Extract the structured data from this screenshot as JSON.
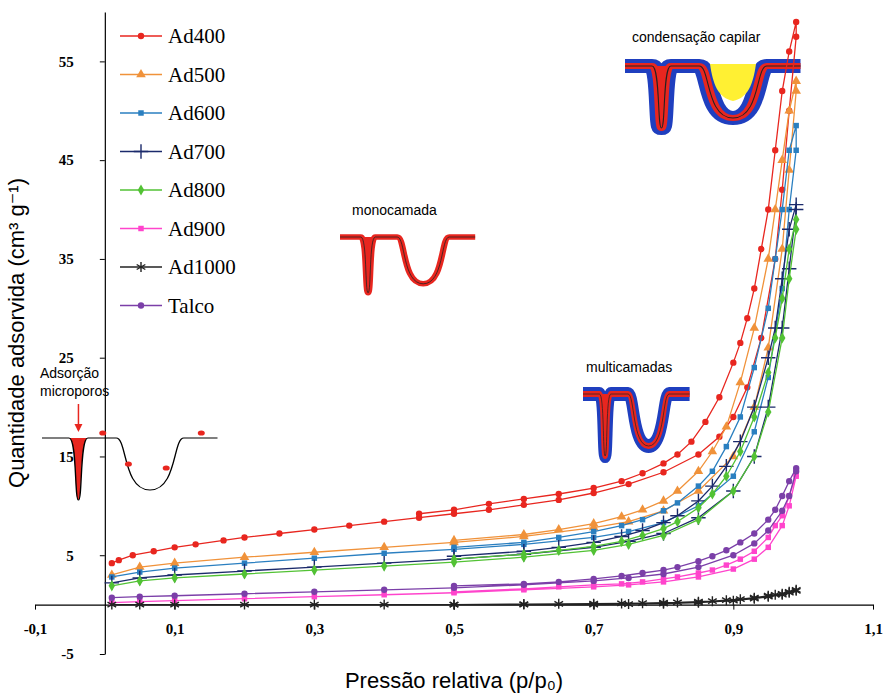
{
  "chart_data": {
    "type": "line",
    "xlabel": "Pressão relativa (p/p₀)",
    "ylabel": "Quantidade adsorvida (cm³ g⁻¹)",
    "annotations": [
      "Adsorção microporos",
      "monocamada",
      "multicamadas",
      "condensação capilar"
    ],
    "xlim": [
      -0.1,
      1.1
    ],
    "ylim": [
      -5,
      60
    ],
    "xticks": [
      {
        "value": -0.1,
        "label": "-0,1"
      },
      {
        "value": 0.1,
        "label": "0,1"
      },
      {
        "value": 0.3,
        "label": "0,3"
      },
      {
        "value": 0.5,
        "label": "0,5"
      },
      {
        "value": 0.7,
        "label": "0,7"
      },
      {
        "value": 0.9,
        "label": "0,9"
      },
      {
        "value": 1.1,
        "label": "1,1"
      }
    ],
    "yticks": [
      -5,
      5,
      15,
      25,
      35,
      45,
      55
    ],
    "grid": false,
    "legend": "upper left",
    "series": [
      {
        "name": "Ad400",
        "color": "#e8261f",
        "marker": "circle",
        "x": [
          0.01,
          0.02,
          0.04,
          0.07,
          0.1,
          0.13,
          0.17,
          0.2,
          0.25,
          0.3,
          0.35,
          0.4,
          0.45,
          0.5,
          0.55,
          0.6,
          0.65,
          0.7,
          0.75,
          0.8,
          0.85,
          0.88,
          0.9,
          0.92,
          0.94,
          0.96,
          0.97,
          0.98,
          0.99,
          0.99,
          0.98,
          0.97,
          0.96,
          0.95,
          0.94,
          0.93,
          0.92,
          0.91,
          0.9,
          0.88,
          0.86,
          0.84,
          0.82,
          0.8,
          0.77,
          0.74,
          0.7,
          0.65,
          0.6,
          0.55,
          0.5,
          0.45
        ],
        "values": [
          4.2,
          4.5,
          5,
          5.4,
          5.8,
          6.1,
          6.5,
          6.8,
          7.2,
          7.6,
          8,
          8.4,
          8.8,
          9.2,
          9.6,
          10.1,
          10.6,
          11.3,
          12.2,
          13.4,
          15.2,
          17,
          19,
          22,
          27,
          35,
          42,
          50,
          57.5,
          59,
          56,
          52,
          46,
          40,
          36,
          32,
          29,
          26.5,
          24.5,
          21,
          18.5,
          16.5,
          15.2,
          14.3,
          13.3,
          12.5,
          11.8,
          11.2,
          10.7,
          10.2,
          9.6,
          9.2
        ]
      },
      {
        "name": "Ad500",
        "color": "#f0923a",
        "marker": "triangle",
        "x": [
          0.01,
          0.05,
          0.1,
          0.2,
          0.3,
          0.4,
          0.5,
          0.6,
          0.7,
          0.75,
          0.8,
          0.85,
          0.9,
          0.93,
          0.95,
          0.97,
          0.98,
          0.99,
          0.99,
          0.98,
          0.97,
          0.96,
          0.95,
          0.93,
          0.91,
          0.89,
          0.87,
          0.85,
          0.82,
          0.8,
          0.77,
          0.74,
          0.7,
          0.65,
          0.6,
          0.5
        ],
        "values": [
          3,
          3.8,
          4.2,
          4.8,
          5.3,
          5.8,
          6.3,
          6.9,
          7.8,
          8.4,
          9.5,
          11.5,
          15,
          20,
          26,
          36,
          44,
          52,
          53,
          50,
          45,
          40,
          35,
          28,
          22.5,
          18,
          15.5,
          13.5,
          11.5,
          10.5,
          9.6,
          8.9,
          8.2,
          7.6,
          7.1,
          6.5
        ]
      },
      {
        "name": "Ad600",
        "color": "#2a7fc0",
        "marker": "square",
        "x": [
          0.01,
          0.05,
          0.1,
          0.2,
          0.3,
          0.4,
          0.5,
          0.6,
          0.7,
          0.75,
          0.8,
          0.85,
          0.9,
          0.93,
          0.95,
          0.97,
          0.98,
          0.99,
          0.99,
          0.98,
          0.97,
          0.96,
          0.95,
          0.93,
          0.91,
          0.89,
          0.87,
          0.85,
          0.82,
          0.8,
          0.77,
          0.74,
          0.7,
          0.65,
          0.6,
          0.5
        ],
        "values": [
          2.8,
          3.3,
          3.7,
          4.2,
          4.7,
          5.2,
          5.6,
          6.1,
          6.8,
          7.4,
          8.3,
          10,
          13,
          17.5,
          23,
          32,
          40,
          46,
          48.5,
          46,
          40,
          35,
          30,
          24,
          19,
          16,
          13.5,
          12,
          10.3,
          9.5,
          8.6,
          8,
          7.4,
          6.8,
          6.3,
          5.8
        ]
      },
      {
        "name": "Ad700",
        "color": "#1b2a6b",
        "marker": "plus",
        "x": [
          0.01,
          0.05,
          0.1,
          0.2,
          0.3,
          0.4,
          0.5,
          0.6,
          0.7,
          0.75,
          0.8,
          0.85,
          0.9,
          0.93,
          0.95,
          0.97,
          0.98,
          0.99,
          0.99,
          0.98,
          0.97,
          0.96,
          0.95,
          0.93,
          0.91,
          0.89,
          0.87,
          0.85,
          0.82,
          0.8,
          0.77,
          0.74,
          0.7,
          0.65,
          0.6,
          0.5
        ],
        "values": [
          2.2,
          2.7,
          3,
          3.4,
          3.8,
          4.2,
          4.6,
          5.1,
          5.8,
          6.4,
          7.2,
          8.8,
          11.5,
          15,
          20,
          28,
          34,
          40,
          40.5,
          38,
          33,
          28,
          25,
          20,
          16.5,
          14,
          12,
          10.5,
          9,
          8.3,
          7.5,
          6.9,
          6.3,
          5.8,
          5.4,
          4.9
        ]
      },
      {
        "name": "Ad800",
        "color": "#52c234",
        "marker": "diamond",
        "x": [
          0.01,
          0.05,
          0.1,
          0.2,
          0.3,
          0.4,
          0.5,
          0.6,
          0.7,
          0.75,
          0.8,
          0.85,
          0.9,
          0.93,
          0.95,
          0.97,
          0.98,
          0.99,
          0.99,
          0.98,
          0.97,
          0.96,
          0.95,
          0.93,
          0.91,
          0.89,
          0.87,
          0.85,
          0.82,
          0.8,
          0.77,
          0.74,
          0.7,
          0.65,
          0.6,
          0.5
        ],
        "values": [
          1.9,
          2.4,
          2.7,
          3.1,
          3.5,
          3.9,
          4.3,
          4.8,
          5.5,
          6.1,
          7,
          8.6,
          11.5,
          15,
          19.5,
          27,
          33,
          38,
          39,
          36,
          31,
          27,
          23.5,
          19,
          15.5,
          13,
          11.2,
          9.8,
          8.4,
          7.7,
          7,
          6.4,
          5.9,
          5.5,
          5.1,
          4.6
        ]
      },
      {
        "name": "Ad900",
        "color": "#ff44cc",
        "marker": "square",
        "x": [
          0.01,
          0.05,
          0.1,
          0.2,
          0.3,
          0.4,
          0.5,
          0.6,
          0.7,
          0.75,
          0.8,
          0.85,
          0.9,
          0.93,
          0.95,
          0.97,
          0.98,
          0.99,
          0.99,
          0.98,
          0.97,
          0.96,
          0.95,
          0.93,
          0.91,
          0.89,
          0.87,
          0.85,
          0.82,
          0.8,
          0.77,
          0.74,
          0.7,
          0.65,
          0.6,
          0.5
        ],
        "values": [
          0.2,
          0.3,
          0.4,
          0.6,
          0.8,
          1,
          1.2,
          1.5,
          1.8,
          2,
          2.3,
          2.8,
          3.6,
          4.6,
          5.8,
          8,
          10,
          13,
          13.2,
          11,
          9,
          8,
          6.8,
          5.4,
          4.6,
          4,
          3.5,
          3.2,
          2.8,
          2.6,
          2.3,
          2.1,
          2,
          1.8,
          1.6,
          1.3
        ]
      },
      {
        "name": "Ad1000",
        "color": "#222222",
        "marker": "asterisk",
        "x": [
          0.01,
          0.05,
          0.1,
          0.2,
          0.3,
          0.4,
          0.5,
          0.6,
          0.7,
          0.75,
          0.8,
          0.85,
          0.9,
          0.93,
          0.95,
          0.97,
          0.98,
          0.99,
          0.99,
          0.98,
          0.97,
          0.96,
          0.95,
          0.93,
          0.91,
          0.89,
          0.87,
          0.85,
          0.82,
          0.8,
          0.77,
          0.74,
          0.7,
          0.65,
          0.6,
          0.5
        ],
        "values": [
          0,
          0,
          0,
          0,
          0,
          0,
          0,
          0,
          0,
          0.05,
          0.1,
          0.2,
          0.4,
          0.6,
          0.8,
          1,
          1.2,
          1.4,
          1.5,
          1.3,
          1.1,
          1,
          0.9,
          0.7,
          0.55,
          0.45,
          0.35,
          0.3,
          0.22,
          0.2,
          0.15,
          0.12,
          0.1,
          0.08,
          0.05,
          0
        ]
      },
      {
        "name": "Talco",
        "color": "#7b3fa8",
        "marker": "circle",
        "x": [
          0.01,
          0.05,
          0.1,
          0.2,
          0.3,
          0.4,
          0.5,
          0.6,
          0.7,
          0.75,
          0.8,
          0.85,
          0.9,
          0.93,
          0.95,
          0.97,
          0.98,
          0.99,
          0.99,
          0.98,
          0.97,
          0.96,
          0.95,
          0.93,
          0.91,
          0.89,
          0.87,
          0.85,
          0.82,
          0.8,
          0.77,
          0.74,
          0.7,
          0.65,
          0.6,
          0.5
        ],
        "values": [
          0.7,
          0.8,
          0.9,
          1.1,
          1.3,
          1.5,
          1.7,
          2,
          2.4,
          2.7,
          3.1,
          3.8,
          5,
          6.2,
          7.5,
          9.5,
          11,
          13.5,
          13.8,
          12.5,
          11,
          9.6,
          8.6,
          7.2,
          6.3,
          5.5,
          4.9,
          4.4,
          3.8,
          3.5,
          3.2,
          2.9,
          2.6,
          2.3,
          2.1,
          1.9
        ]
      }
    ]
  }
}
